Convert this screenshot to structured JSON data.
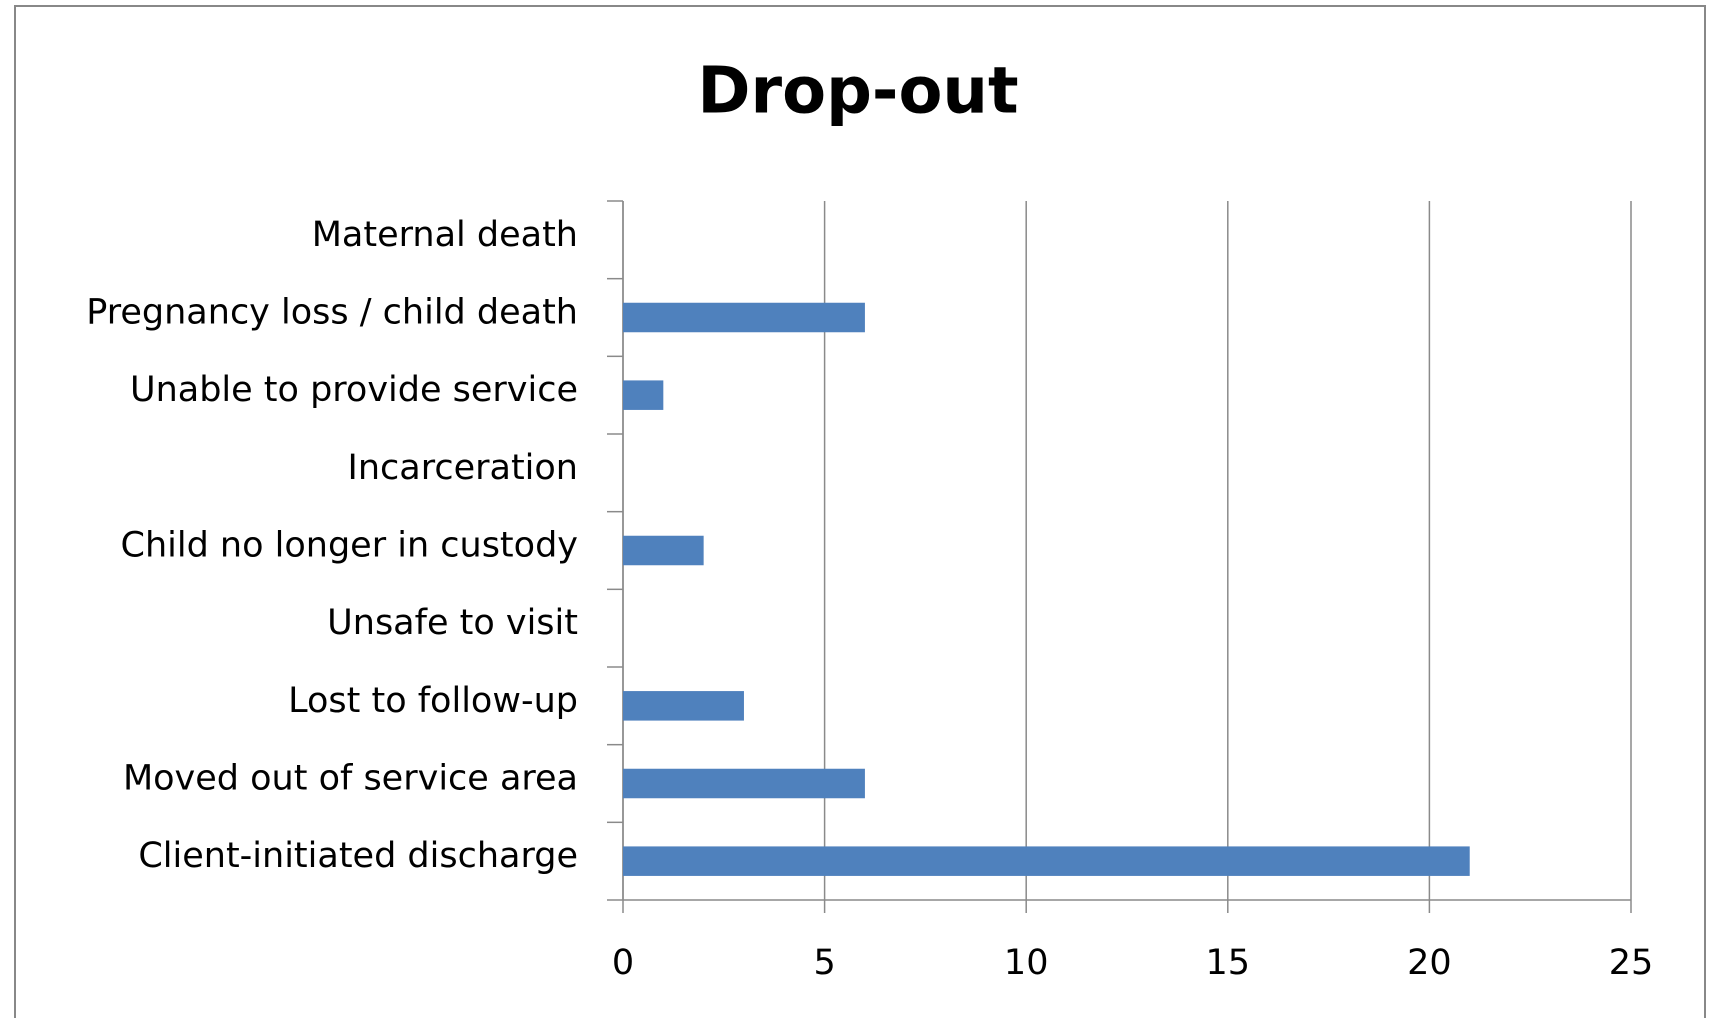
{
  "chart_data": {
    "type": "barh",
    "title": "Drop-out",
    "categories": [
      "Client-initiated discharge",
      "Moved out of service area",
      "Lost to follow-up",
      "Unsafe to visit",
      "Child no longer in custody",
      "Incarceration",
      "Unable to provide service",
      "Pregnancy loss / child death",
      "Maternal death"
    ],
    "values": [
      21,
      6,
      3,
      0,
      2,
      0,
      1,
      6,
      0
    ],
    "color": "#4f81bd",
    "xlim": [
      0,
      25
    ],
    "xticks": [
      0,
      5,
      10,
      15,
      20,
      25
    ],
    "grid": true
  }
}
